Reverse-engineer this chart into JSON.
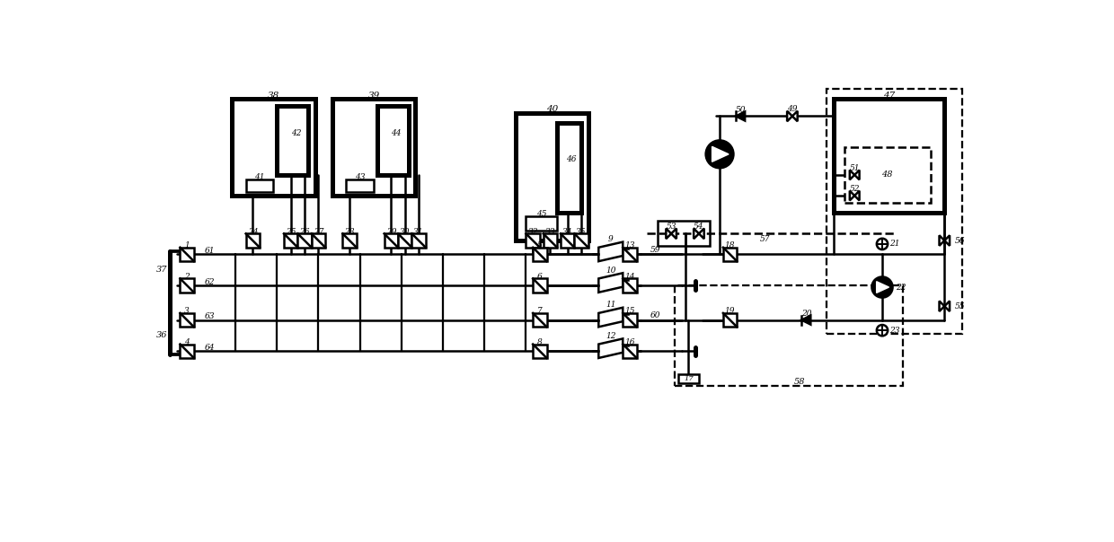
{
  "bg_color": "#ffffff",
  "lc": "#000000",
  "lw": 1.8,
  "figsize": [
    12.4,
    6.04
  ],
  "dpi": 100,
  "xlim": [
    0,
    124
  ],
  "ylim": [
    0,
    60.4
  ]
}
